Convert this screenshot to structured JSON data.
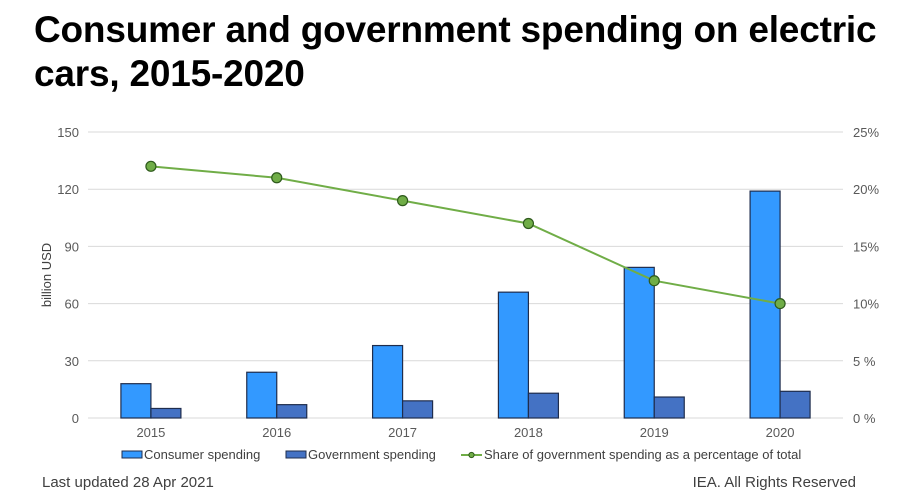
{
  "title": "Consumer and government spending on electric cars, 2015-2020",
  "footer": {
    "updated": "Last updated 28 Apr 2021",
    "rights": "IEA. All Rights Reserved"
  },
  "colors": {
    "consumer": "#3399FF",
    "government": "#4472C4",
    "bar_border": "#1F2D4D",
    "share_line": "#70AD47",
    "share_marker_border": "#2E5A1C",
    "grid": "#D9D9D9"
  },
  "chart_data": {
    "type": "bar",
    "title": "Consumer and government spending on electric cars, 2015-2020",
    "categories": [
      "2015",
      "2016",
      "2017",
      "2018",
      "2019",
      "2020"
    ],
    "series": [
      {
        "name": "Consumer spending",
        "type": "bar",
        "axis": "left",
        "values": [
          18,
          24,
          38,
          66,
          79,
          119
        ]
      },
      {
        "name": "Government spending",
        "type": "bar",
        "axis": "left",
        "values": [
          5,
          7,
          9,
          13,
          11,
          14
        ]
      },
      {
        "name": "Share of government spending as a percentage of total",
        "type": "line",
        "axis": "right",
        "values": [
          22,
          21,
          19,
          17,
          12,
          10
        ]
      }
    ],
    "xlabel": "",
    "ylabel": "billion USD",
    "ylim": [
      0,
      150
    ],
    "yticks": [
      "0",
      "30",
      "60",
      "90",
      "120",
      "150"
    ],
    "y2lim": [
      0,
      25
    ],
    "y2ticks": [
      "0 %",
      "5 %",
      "10%",
      "15%",
      "20%",
      "25%"
    ],
    "grid": true,
    "legend_position": "bottom"
  }
}
